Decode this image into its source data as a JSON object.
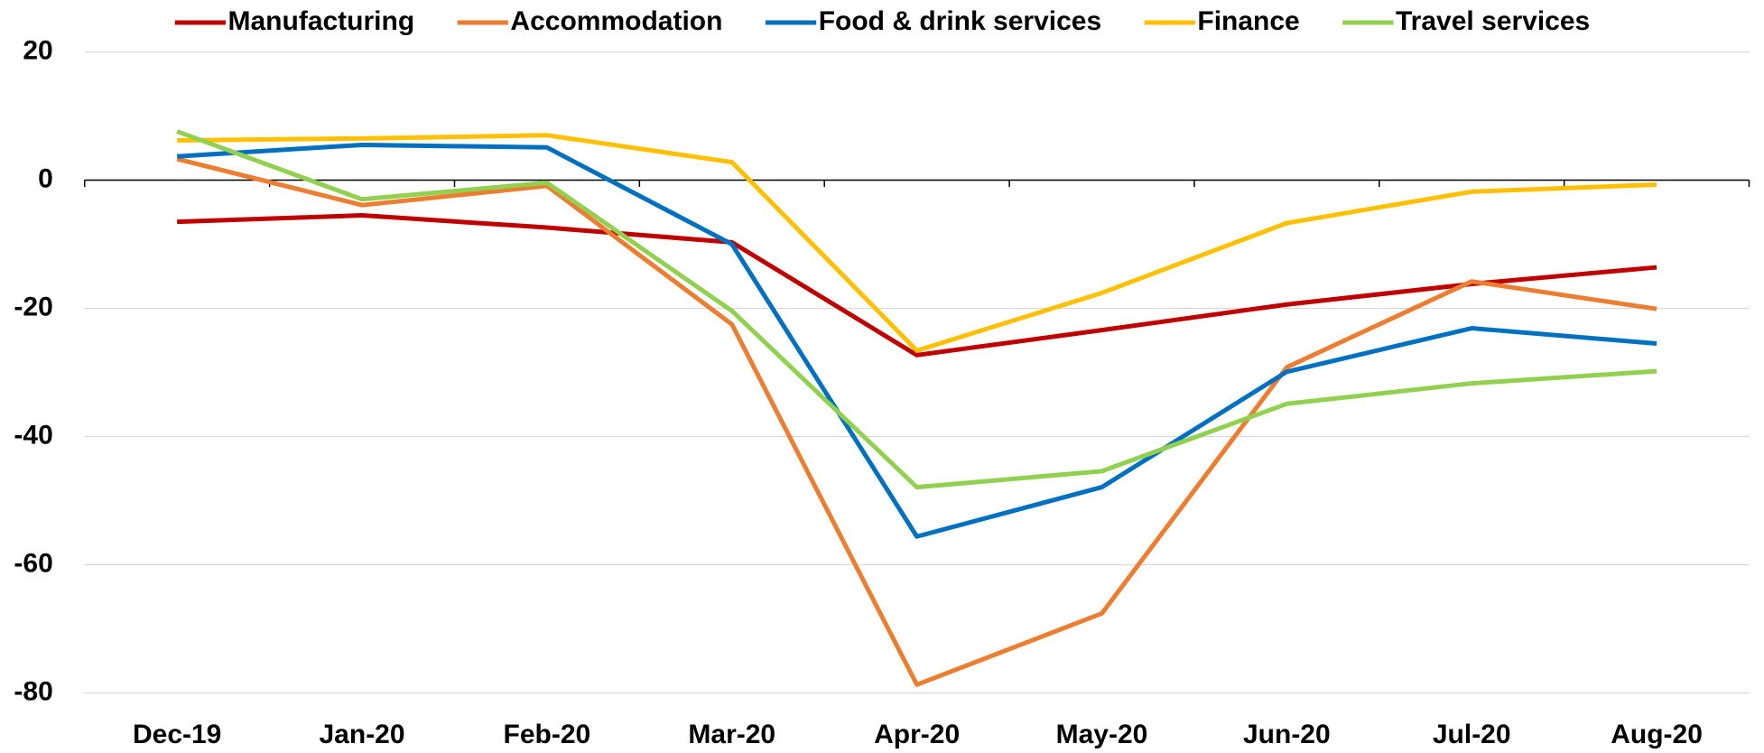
{
  "chart_data": {
    "type": "line",
    "categories": [
      "Dec-19",
      "Jan-20",
      "Feb-20",
      "Mar-20",
      "Apr-20",
      "May-20",
      "Jun-20",
      "Jul-20",
      "Aug-20"
    ],
    "series": [
      {
        "name": "Manufacturing",
        "color": "#c00000",
        "values": [
          -6.5,
          -5.5,
          -7.4,
          -9.7,
          -27.3,
          -23.4,
          -19.4,
          -16.2,
          -13.6
        ]
      },
      {
        "name": "Accommodation",
        "color": "#ed7d31",
        "values": [
          3.3,
          -3.9,
          -0.9,
          -22.5,
          -78.7,
          -67.6,
          -29.2,
          -15.8,
          -20.1
        ]
      },
      {
        "name": "Food & drink services",
        "color": "#0070c0",
        "values": [
          3.7,
          5.5,
          5.1,
          -10,
          -55.6,
          -47.9,
          -29.9,
          -23.1,
          -25.5
        ]
      },
      {
        "name": "Finance",
        "color": "#ffc000",
        "values": [
          6.2,
          6.5,
          7,
          2.8,
          -26.6,
          -17.6,
          -6.7,
          -1.8,
          -0.7
        ]
      },
      {
        "name": "Travel services",
        "color": "#92d050",
        "values": [
          7.6,
          -3,
          -0.4,
          -20.4,
          -47.9,
          -45.4,
          -34.9,
          -31.7,
          -29.8
        ]
      }
    ],
    "ylim": [
      -80,
      20
    ],
    "yticks": [
      -80,
      -60,
      -40,
      -20,
      0,
      20
    ],
    "grid": true,
    "legend": "top"
  }
}
